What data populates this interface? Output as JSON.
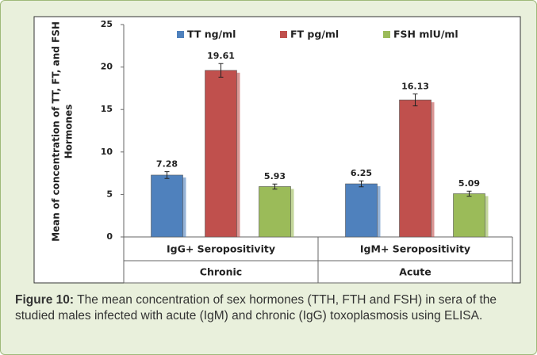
{
  "chart_data": {
    "type": "bar",
    "ylabel": [
      "Mean of concentration of TT, FT, and FSH",
      "Hormones"
    ],
    "categories": [
      "IgG+ Seropositivity",
      "IgM+ Seropositivity"
    ],
    "category_groups": [
      "Chronic",
      "Acute"
    ],
    "series": [
      {
        "name": "TT ng/ml",
        "color": "#4f81bd",
        "values": [
          7.28,
          6.25
        ],
        "errors": [
          0.4,
          0.35
        ]
      },
      {
        "name": "FT pg/ml",
        "color": "#c0504d",
        "values": [
          19.61,
          16.13
        ],
        "errors": [
          0.8,
          0.7
        ]
      },
      {
        "name": "FSH mlU/ml",
        "color": "#9bbb59",
        "values": [
          5.93,
          5.09
        ],
        "errors": [
          0.3,
          0.3
        ]
      }
    ],
    "ylim": [
      0,
      25
    ],
    "yticks": [
      0,
      5,
      10,
      15,
      20,
      25
    ],
    "grid": false,
    "legend": "top"
  },
  "caption": {
    "label": "Figure 10:",
    "text": " The mean concentration of sex hormones (TTH, FTH and FSH) in sera of the studied males infected with acute (IgM) and chronic (IgG) toxoplasmosis using ELISA."
  }
}
